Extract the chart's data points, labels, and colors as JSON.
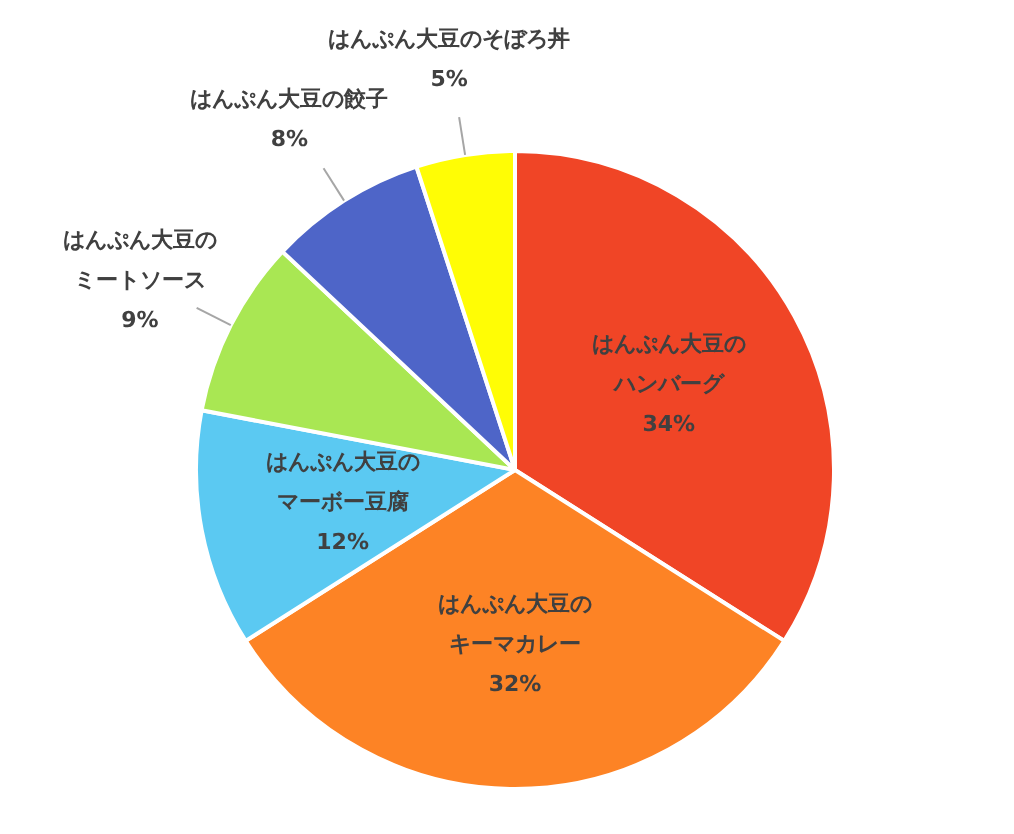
{
  "chart_data": {
    "type": "pie",
    "categories": [
      "はんぷん大豆のハンバーグ",
      "はんぷん大豆のキーマカレー",
      "はんぷん大豆のマーボー豆腐",
      "はんぷん大豆のミートソース",
      "はんぷん大豆の餃子",
      "はんぷん大豆のそぼろ丼"
    ],
    "values": [
      34,
      32,
      12,
      9,
      8,
      5
    ],
    "colors": [
      "#f04526",
      "#fd8325",
      "#5bc9f2",
      "#a9e753",
      "#4e65c8",
      "#fffd05"
    ],
    "value_labels": [
      "34%",
      "32%",
      "12%",
      "9%",
      "8%",
      "5%"
    ],
    "legend": false
  }
}
